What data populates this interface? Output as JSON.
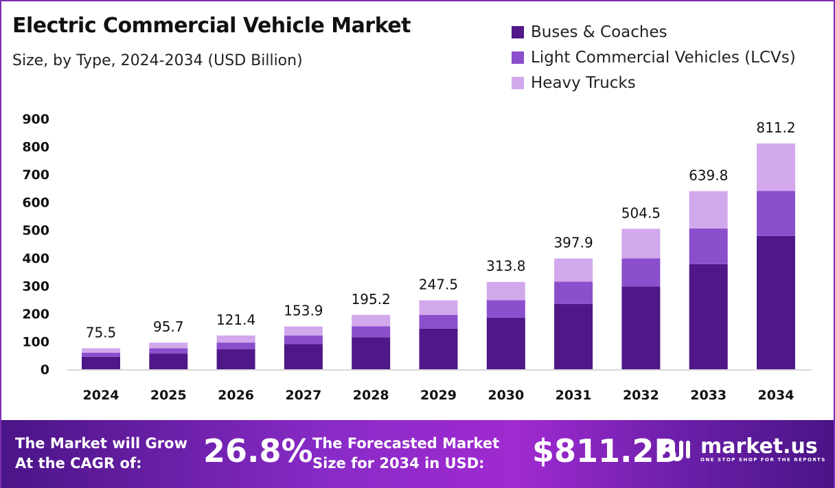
{
  "chart_data": {
    "type": "bar",
    "stacked": true,
    "title": "Electric Commercial Vehicle Market",
    "subtitle": "Size, by Type, 2024-2034 (USD Billion)",
    "categories": [
      "2024",
      "2025",
      "2026",
      "2027",
      "2028",
      "2029",
      "2030",
      "2031",
      "2032",
      "2033",
      "2034"
    ],
    "totals": [
      75.5,
      95.7,
      121.4,
      153.9,
      195.2,
      247.5,
      313.8,
      397.9,
      504.5,
      639.8,
      811.2
    ],
    "total_labels": [
      "75.5",
      "95.7",
      "121.4",
      "153.9",
      "195.2",
      "247.5",
      "313.8",
      "397.9",
      "504.5",
      "639.8",
      "811.2"
    ],
    "series": [
      {
        "name": "Buses & Coaches",
        "color": "#4f1787",
        "values": [
          44.5,
          56.5,
          71.6,
          90.8,
          115.2,
          146.0,
          185.1,
          234.8,
          297.7,
          377.5,
          478.6
        ]
      },
      {
        "name": "Light Commercial Vehicles (LCVs)",
        "color": "#8b4ecc",
        "values": [
          15.1,
          19.1,
          24.3,
          30.8,
          39.0,
          49.5,
          62.8,
          79.6,
          100.9,
          128.0,
          162.2
        ]
      },
      {
        "name": "Heavy Trucks",
        "color": "#d2a8ec",
        "values": [
          15.9,
          20.1,
          25.5,
          32.3,
          41.0,
          52.0,
          65.9,
          83.5,
          105.9,
          134.3,
          170.4
        ]
      }
    ],
    "yticks": [
      "0",
      "100",
      "200",
      "300",
      "400",
      "500",
      "600",
      "700",
      "800",
      "900"
    ],
    "ylim": [
      0,
      900
    ],
    "grid": false,
    "legend": "top-right"
  },
  "footer": {
    "cagr_text_1": "The Market will Grow",
    "cagr_text_2": "At the CAGR of:",
    "cagr_value": "26.8%",
    "forecast_text_1": "The Forecasted Market",
    "forecast_text_2": "Size for 2034 in USD:",
    "forecast_value": "$811.2B",
    "brand": "market.us",
    "tagline": "ONE STOP SHOP FOR THE REPORTS"
  }
}
